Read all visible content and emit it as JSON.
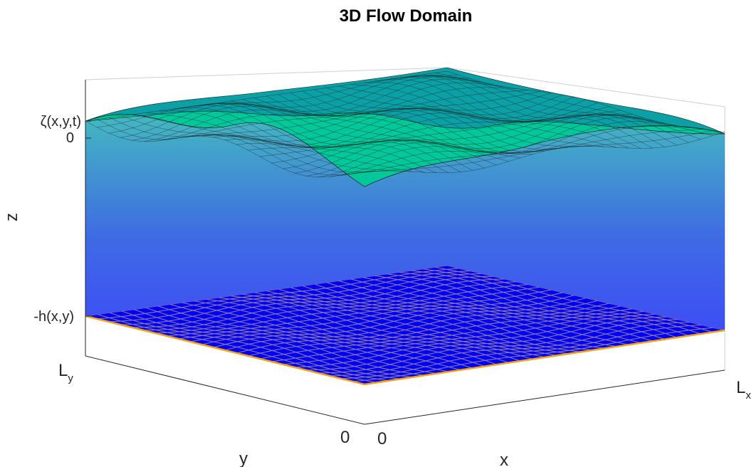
{
  "title": "3D Flow Domain",
  "axes": {
    "x_label": "x",
    "y_label": "y",
    "z_label": "z",
    "x_ticks": {
      "zero": "0",
      "end_main": "L",
      "end_sub": "x"
    },
    "y_ticks": {
      "zero": "0",
      "end_main": "L",
      "end_sub": "y"
    },
    "z_ticks": {
      "surface": "ζ(x,y,t)",
      "zero": "0",
      "bottom": "-h(x,y)"
    }
  },
  "colors": {
    "surface_low": "#00c89a",
    "surface_high": "#0aa0a6",
    "water_top": "#44b9c0",
    "water_mid": "#3f6be3",
    "water_bottom": "#3d3dff",
    "bed": "#0000f5",
    "bed_mesh": "#8a78a8",
    "bed_edge": "#f3a315",
    "mesh": "#1a1a1a"
  }
}
